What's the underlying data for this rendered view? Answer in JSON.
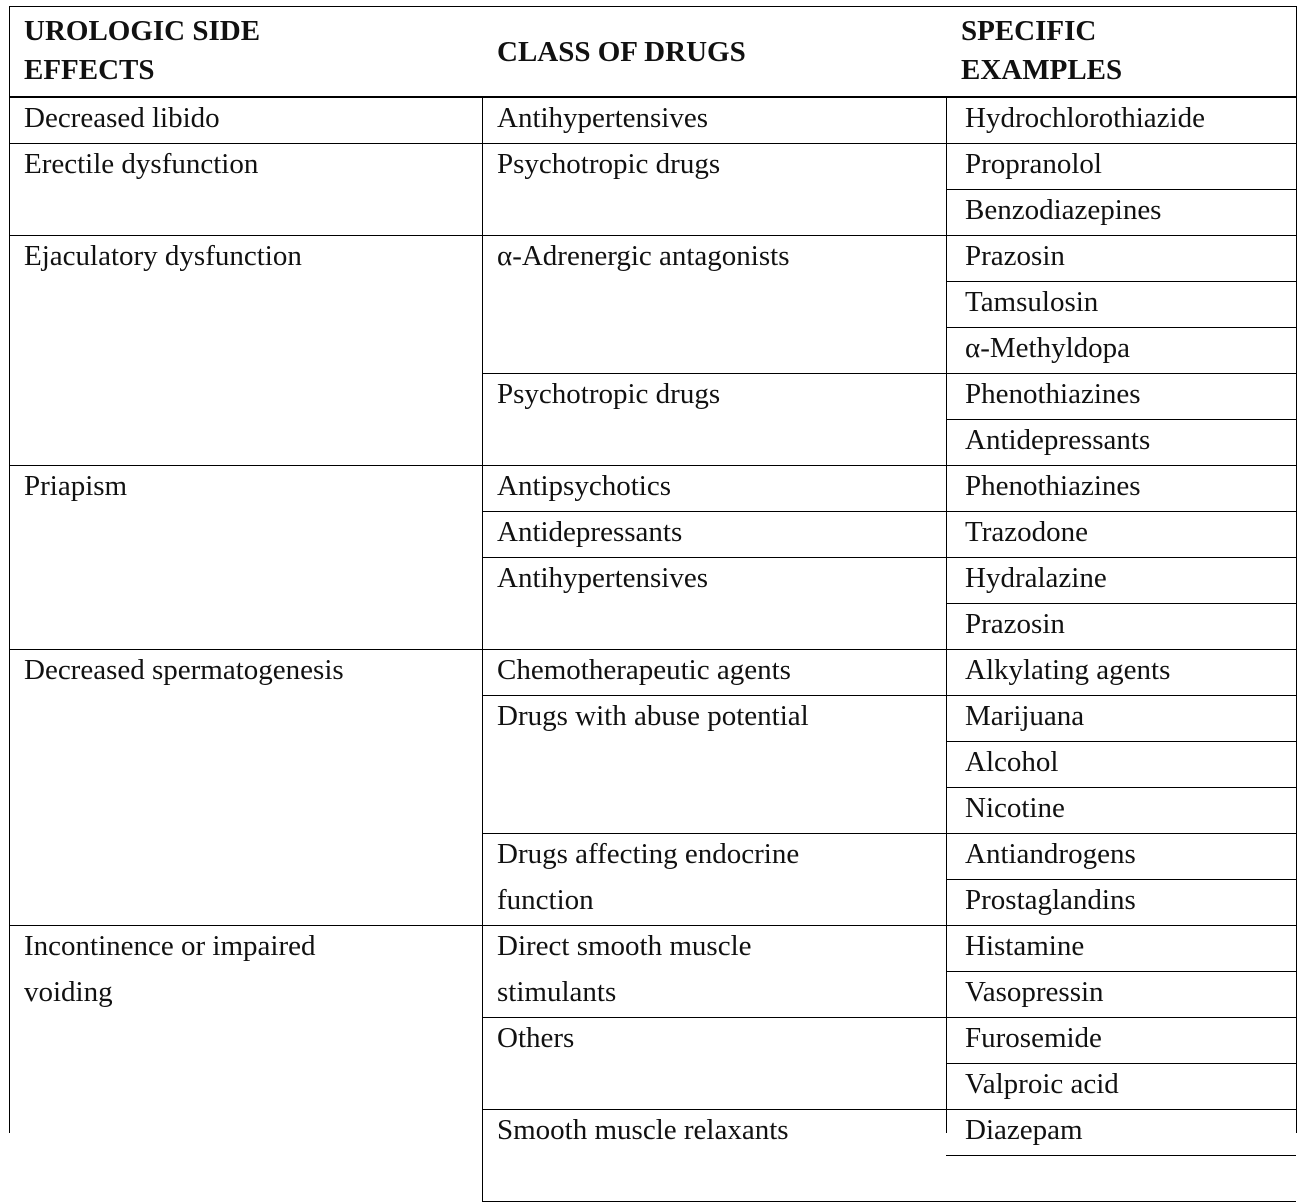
{
  "table": {
    "headers": {
      "effects": [
        "UROLOGIC SIDE",
        "EFFECTS"
      ],
      "class": "CLASS OF DRUGS",
      "examples": [
        "SPECIFIC",
        "EXAMPLES"
      ]
    },
    "groups": [
      {
        "effect": [
          "Decreased libido"
        ],
        "classes": [
          {
            "name": [
              "Antihypertensives"
            ],
            "examples": [
              "Hydrochlorothiazide"
            ]
          }
        ]
      },
      {
        "effect": [
          "Erectile dysfunction"
        ],
        "classes": [
          {
            "name": [
              "Psychotropic drugs"
            ],
            "examples": [
              "Propranolol",
              "Benzodiazepines"
            ]
          }
        ]
      },
      {
        "effect": [
          "Ejaculatory dysfunction"
        ],
        "classes": [
          {
            "name": [
              "α-Adrenergic antagonists"
            ],
            "examples": [
              "Prazosin",
              "Tamsulosin",
              "α-Methyldopa"
            ]
          },
          {
            "name": [
              "Psychotropic drugs"
            ],
            "examples": [
              "Phenothiazines",
              "Antidepressants"
            ]
          }
        ]
      },
      {
        "effect": [
          "Priapism"
        ],
        "classes": [
          {
            "name": [
              "Antipsychotics"
            ],
            "examples": [
              "Phenothiazines"
            ]
          },
          {
            "name": [
              "Antidepressants"
            ],
            "examples": [
              "Trazodone"
            ]
          },
          {
            "name": [
              "Antihypertensives"
            ],
            "examples": [
              "Hydralazine",
              "Prazosin"
            ]
          }
        ]
      },
      {
        "effect": [
          "Decreased spermatogenesis"
        ],
        "classes": [
          {
            "name": [
              "Chemotherapeutic agents"
            ],
            "examples": [
              "Alkylating agents"
            ]
          },
          {
            "name": [
              "Drugs with abuse potential"
            ],
            "examples": [
              "Marijuana",
              "Alcohol",
              "Nicotine"
            ]
          },
          {
            "name": [
              "Drugs affecting endocrine",
              "function"
            ],
            "examples": [
              "Antiandrogens",
              "Prostaglandins"
            ]
          }
        ]
      },
      {
        "effect": [
          "Incontinence or impaired",
          "voiding"
        ],
        "classes": [
          {
            "name": [
              "Direct smooth muscle",
              "stimulants"
            ],
            "examples": [
              "Histamine",
              "Vasopressin"
            ]
          },
          {
            "name": [
              "Others"
            ],
            "examples": [
              "Furosemide",
              "Valproic acid"
            ]
          },
          {
            "name": [
              "Smooth muscle relaxants"
            ],
            "examples": [
              "Diazepam",
              ""
            ]
          }
        ]
      }
    ]
  }
}
